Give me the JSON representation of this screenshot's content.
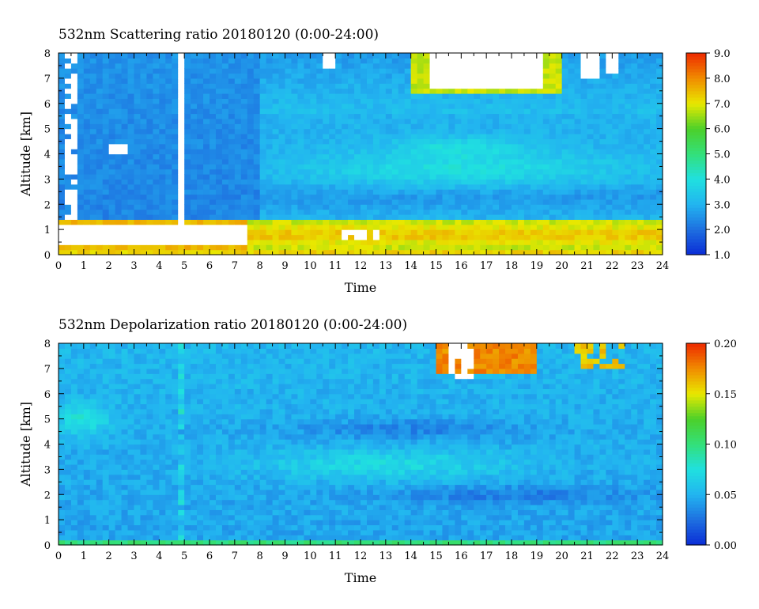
{
  "chart_data": [
    {
      "type": "heatmap",
      "title": "532nm Scattering ratio  20180120 (0:00-24:00)",
      "xlabel": "Time",
      "ylabel": "Altitude [km]",
      "xlim": [
        0,
        24
      ],
      "ylim": [
        0,
        8
      ],
      "x_ticks": [
        "0",
        "1",
        "2",
        "3",
        "4",
        "5",
        "6",
        "7",
        "8",
        "9",
        "10",
        "11",
        "12",
        "13",
        "14",
        "15",
        "16",
        "17",
        "18",
        "19",
        "20",
        "21",
        "22",
        "23",
        "24"
      ],
      "y_ticks": [
        "0",
        "1",
        "2",
        "3",
        "4",
        "5",
        "6",
        "7",
        "8"
      ],
      "colorbar": {
        "range": [
          1.0,
          9.0
        ],
        "ticks": [
          "1.0",
          "2.0",
          "3.0",
          "4.0",
          "5.0",
          "6.0",
          "7.0",
          "8.0",
          "9.0"
        ]
      },
      "colors": [
        "#0a2cd6",
        "#1e6fe0",
        "#22b4f0",
        "#20e0e0",
        "#33e07a",
        "#4cd02a",
        "#e8e800",
        "#f08c00",
        "#ee2a00"
      ],
      "missing_color": "#ffffff"
    },
    {
      "type": "heatmap",
      "title": "532nm Depolarization ratio  20180120 (0:00-24:00)",
      "xlabel": "Time",
      "ylabel": "Altitude [km]",
      "xlim": [
        0,
        24
      ],
      "ylim": [
        0,
        8
      ],
      "x_ticks": [
        "0",
        "1",
        "2",
        "3",
        "4",
        "5",
        "6",
        "7",
        "8",
        "9",
        "10",
        "11",
        "12",
        "13",
        "14",
        "15",
        "16",
        "17",
        "18",
        "19",
        "20",
        "21",
        "22",
        "23",
        "24"
      ],
      "y_ticks": [
        "0",
        "1",
        "2",
        "3",
        "4",
        "5",
        "6",
        "7",
        "8"
      ],
      "colorbar": {
        "range": [
          0.0,
          0.2
        ],
        "ticks": [
          "0.00",
          "0.05",
          "0.10",
          "0.15",
          "0.20"
        ]
      },
      "colors": [
        "#0a2cd6",
        "#1e6fe0",
        "#22b4f0",
        "#20e0e0",
        "#33e07a",
        "#4cd02a",
        "#e8e800",
        "#f08c00",
        "#ee2a00"
      ],
      "missing_color": "#ffffff"
    }
  ]
}
